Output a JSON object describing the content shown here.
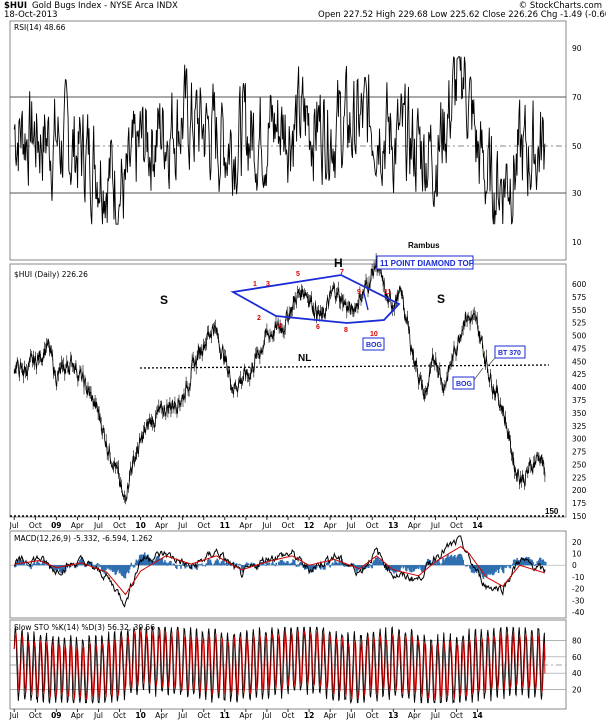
{
  "header": {
    "symbol": "$HUI",
    "name": "Gold Bugs Index - NYSE Arca INDX",
    "date": "18-Oct-2013",
    "ohlc": "Open 227.52  High 229.68  Low 225.62  Close 226.26  Chg -1.49 (-0.66%)",
    "watermark": "© StockCharts.com"
  },
  "colors": {
    "price": "#000000",
    "rsi": "#000000",
    "macd": "#000000",
    "signal": "#cc0000",
    "histogram": "#2f6fb0",
    "pattern": "#1a2bd6",
    "numbers": "#d40000",
    "boxes": "#1a2bd6"
  },
  "chart_data": [
    {
      "type": "line",
      "title": "RSI(14) 48.66",
      "ylim": [
        0,
        100
      ],
      "yticks": [
        "90",
        "70",
        "50",
        "30",
        "10"
      ],
      "reference_lines": [
        70,
        50,
        30
      ],
      "x": [
        2007.5,
        2008.0,
        2008.5,
        2008.83,
        2009.0,
        2009.5,
        2010.0,
        2010.5,
        2011.0,
        2011.5,
        2011.83,
        2012.0,
        2012.5,
        2012.83,
        2013.0,
        2013.17,
        2013.5,
        2013.8
      ],
      "values": [
        55,
        50,
        42,
        28,
        48,
        60,
        50,
        55,
        58,
        55,
        60,
        50,
        45,
        80,
        45,
        30,
        42,
        48.66
      ]
    },
    {
      "type": "line",
      "title": "$HUI (Daily) 226.26",
      "ylim": [
        150,
        620
      ],
      "yticks": [
        "600",
        "575",
        "550",
        "525",
        "500",
        "475",
        "450",
        "425",
        "400",
        "375",
        "350",
        "325",
        "300",
        "275",
        "250",
        "225",
        "200",
        "175",
        "150"
      ],
      "xticks": [
        "Jul",
        "Oct",
        "09",
        "Apr",
        "Jul",
        "Oct",
        "10",
        "Apr",
        "Jul",
        "Oct",
        "11",
        "Apr",
        "Jul",
        "Oct",
        "12",
        "Apr",
        "Jul",
        "Oct",
        "13",
        "Apr",
        "Jul",
        "Oct",
        "14"
      ],
      "x": [
        2007.5,
        2007.6,
        2007.75,
        2007.9,
        2008.0,
        2008.2,
        2008.35,
        2008.5,
        2008.6,
        2008.7,
        2008.8,
        2008.88,
        2008.95,
        2009.1,
        2009.3,
        2009.5,
        2009.7,
        2009.87,
        2009.95,
        2010.1,
        2010.3,
        2010.5,
        2010.7,
        2010.85,
        2010.95,
        2011.15,
        2011.3,
        2011.5,
        2011.7,
        2011.8,
        2011.95,
        2012.1,
        2012.2,
        2012.37,
        2012.5,
        2012.6,
        2012.75,
        2012.85,
        2013.0,
        2013.15,
        2013.3,
        2013.45,
        2013.55,
        2013.65,
        2013.75,
        2013.8
      ],
      "values": [
        440,
        430,
        450,
        480,
        420,
        450,
        400,
        350,
        290,
        250,
        175,
        240,
        270,
        330,
        360,
        380,
        470,
        520,
        480,
        400,
        430,
        500,
        520,
        575,
        590,
        530,
        590,
        545,
        600,
        640,
        560,
        580,
        490,
        380,
        460,
        400,
        480,
        540,
        520,
        420,
        360,
        240,
        220,
        250,
        270,
        226.26
      ]
    },
    {
      "type": "line",
      "title": "MACD(12,26,9) -5.332, -6.594, 1.262",
      "ylim": [
        -40,
        25
      ],
      "yticks": [
        "20",
        "10",
        "0",
        "-10",
        "-20",
        "-30",
        "-40"
      ],
      "series": [
        {
          "name": "MACD",
          "x": [
            2007.5,
            2007.8,
            2008.0,
            2008.3,
            2008.6,
            2008.82,
            2009.0,
            2009.3,
            2009.6,
            2009.9,
            2010.2,
            2010.5,
            2010.8,
            2011.0,
            2011.3,
            2011.6,
            2011.8,
            2012.0,
            2012.3,
            2012.5,
            2012.8,
            2012.9,
            2013.1,
            2013.3,
            2013.5,
            2013.8
          ],
          "values": [
            2,
            6,
            -5,
            4,
            -10,
            -32,
            5,
            10,
            -2,
            12,
            -8,
            6,
            10,
            -4,
            8,
            -6,
            12,
            -8,
            -12,
            8,
            22,
            5,
            -18,
            -20,
            5,
            -5.332
          ]
        },
        {
          "name": "Signal",
          "x": [
            2007.5,
            2007.8,
            2008.0,
            2008.3,
            2008.6,
            2008.82,
            2009.0,
            2009.3,
            2009.6,
            2009.9,
            2010.2,
            2010.5,
            2010.8,
            2011.0,
            2011.3,
            2011.6,
            2011.8,
            2012.0,
            2012.3,
            2012.5,
            2012.8,
            2012.9,
            2013.1,
            2013.3,
            2013.5,
            2013.8
          ],
          "values": [
            1,
            4,
            -2,
            2,
            -6,
            -25,
            -5,
            8,
            1,
            8,
            -4,
            3,
            8,
            0,
            5,
            -3,
            8,
            -4,
            -9,
            3,
            16,
            10,
            -10,
            -18,
            0,
            -6.594
          ]
        }
      ]
    },
    {
      "type": "line",
      "title": "Slow STO %K(14) %D(3) 56.32, 39.56",
      "ylim": [
        0,
        100
      ],
      "yticks": [
        "80",
        "60",
        "40",
        "20"
      ],
      "reference_lines": [
        80,
        50,
        20
      ],
      "series": [
        {
          "name": "%K",
          "x": [
            2007.5,
            2008.0,
            2008.5,
            2009.0,
            2009.5,
            2010.0,
            2010.5,
            2011.0,
            2011.5,
            2012.0,
            2012.5,
            2013.0,
            2013.5,
            2013.8
          ],
          "values": [
            60,
            30,
            20,
            80,
            70,
            40,
            60,
            85,
            30,
            60,
            20,
            50,
            70,
            56.32
          ]
        },
        {
          "name": "%D",
          "x": [
            2007.5,
            2008.0,
            2008.5,
            2009.0,
            2009.5,
            2010.0,
            2010.5,
            2011.0,
            2011.5,
            2012.0,
            2012.5,
            2013.0,
            2013.5,
            2013.8
          ],
          "values": [
            55,
            35,
            25,
            70,
            65,
            45,
            55,
            80,
            35,
            55,
            25,
            45,
            60,
            39.56
          ]
        }
      ]
    }
  ],
  "annotations": {
    "rambus": "Rambus",
    "diamond_label": "11 POINT DIAMOND TOP",
    "left_shoulder": "S",
    "head": "H",
    "right_shoulder": "S",
    "neckline": "NL",
    "bog1": "BOG",
    "bog2": "BOG",
    "bt": "BT 370",
    "level_150": "150",
    "points": [
      "1",
      "2",
      "3",
      "4",
      "5",
      "6",
      "7",
      "8",
      "9",
      "10",
      "11"
    ]
  }
}
